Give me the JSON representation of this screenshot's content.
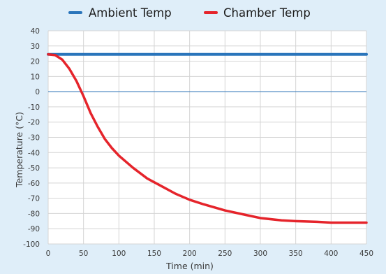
{
  "chart_data": {
    "type": "line",
    "title": "",
    "xlabel": "Time (min)",
    "ylabel": "Temperature (°C)",
    "xlim": [
      0,
      450
    ],
    "ylim": [
      -100,
      40
    ],
    "xticks": [
      0,
      50,
      100,
      150,
      200,
      250,
      300,
      350,
      400,
      450
    ],
    "yticks": [
      40,
      30,
      20,
      10,
      0,
      -10,
      -20,
      -30,
      -40,
      -50,
      -60,
      -70,
      -80,
      -90,
      -100
    ],
    "grid": true,
    "legend_position": "top",
    "series": [
      {
        "name": "Ambient Temp",
        "color": "#2a75bb",
        "x": [
          0,
          25,
          50,
          75,
          100,
          125,
          150,
          175,
          200,
          225,
          250,
          275,
          300,
          325,
          350,
          375,
          400,
          425,
          450
        ],
        "y": [
          24.5,
          24.5,
          24.5,
          24.5,
          24.5,
          24.5,
          24.5,
          24.5,
          24.5,
          24.5,
          24.5,
          24.5,
          24.5,
          24.5,
          24.5,
          24.5,
          24.5,
          24.5,
          24.5
        ]
      },
      {
        "name": "Chamber Temp",
        "color": "#e5242b",
        "x": [
          0,
          10,
          20,
          30,
          40,
          50,
          60,
          70,
          80,
          90,
          100,
          120,
          140,
          160,
          180,
          200,
          220,
          250,
          280,
          300,
          330,
          350,
          380,
          400,
          420,
          450
        ],
        "y": [
          24.5,
          24,
          21,
          15,
          7,
          -3,
          -14,
          -23,
          -31,
          -37,
          -42,
          -50,
          -57,
          -62,
          -67,
          -71,
          -74,
          -78,
          -81,
          -83,
          -84.5,
          -85,
          -85.5,
          -86,
          -86,
          -86
        ]
      }
    ]
  }
}
